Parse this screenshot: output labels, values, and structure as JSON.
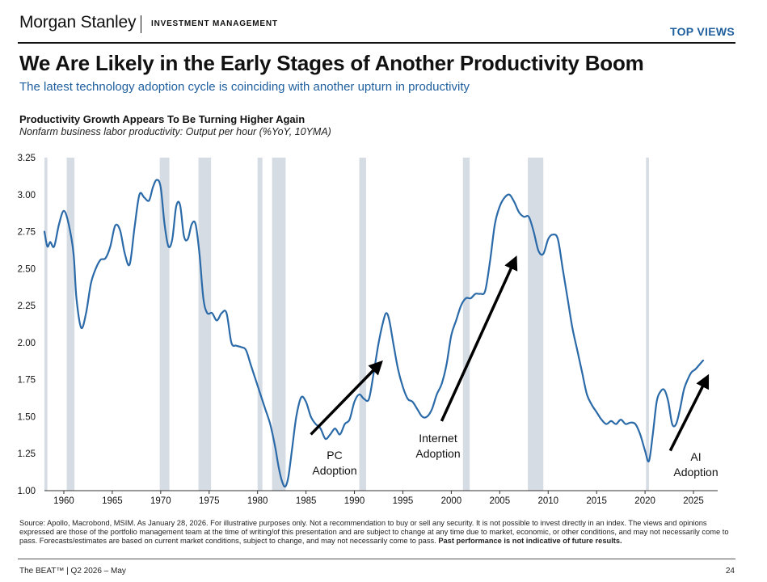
{
  "header": {
    "brand": "Morgan Stanley",
    "division": "INVESTMENT MANAGEMENT",
    "section_tag": "TOP VIEWS"
  },
  "slide": {
    "title": "We Are Likely in the Early Stages of Another Productivity Boom",
    "subtitle": "The latest technology adoption cycle is coinciding with another upturn in productivity"
  },
  "chart_data": {
    "type": "line",
    "title": "Productivity Growth Appears To Be Turning Higher Again",
    "subtitle": "Nonfarm business labor productivity: Output per hour (%YoY, 10YMA)",
    "xlim": [
      1958,
      2027.5
    ],
    "ylim": [
      1.0,
      3.25
    ],
    "yticks": [
      "1.00",
      "1.25",
      "1.50",
      "1.75",
      "2.00",
      "2.25",
      "2.50",
      "2.75",
      "3.00",
      "3.25"
    ],
    "xticks": [
      "1960",
      "1965",
      "1970",
      "1975",
      "1980",
      "1985",
      "1990",
      "1995",
      "2000",
      "2005",
      "2010",
      "2015",
      "2020",
      "2025"
    ],
    "line_color": "#2b6aa8",
    "recession_color": "#d6dce4",
    "recessions": [
      [
        1957.6,
        1958.3
      ],
      [
        1960.3,
        1961.1
      ],
      [
        1969.9,
        1970.9
      ],
      [
        1973.9,
        1975.2
      ],
      [
        1980.0,
        1980.5
      ],
      [
        1981.5,
        1982.9
      ],
      [
        1990.5,
        1991.2
      ],
      [
        2001.2,
        2001.9
      ],
      [
        2007.9,
        2009.5
      ],
      [
        2020.1,
        2020.4
      ]
    ],
    "x": [
      1958.0,
      1958.3,
      1958.6,
      1959.0,
      1959.5,
      1960.0,
      1960.5,
      1961.0,
      1961.3,
      1961.8,
      1962.3,
      1962.8,
      1963.3,
      1963.8,
      1964.3,
      1964.8,
      1965.3,
      1965.8,
      1966.3,
      1966.8,
      1967.3,
      1967.8,
      1968.3,
      1968.8,
      1969.2,
      1969.6,
      1970.0,
      1970.4,
      1970.8,
      1971.2,
      1971.6,
      1972.0,
      1972.4,
      1972.8,
      1973.2,
      1973.6,
      1974.0,
      1974.4,
      1974.8,
      1975.3,
      1975.8,
      1976.3,
      1976.8,
      1977.3,
      1977.8,
      1978.3,
      1978.8,
      1979.3,
      1979.8,
      1980.3,
      1980.8,
      1981.3,
      1981.8,
      1982.2,
      1982.6,
      1982.9,
      1983.2,
      1983.6,
      1984.0,
      1984.5,
      1985.0,
      1985.5,
      1986.0,
      1986.5,
      1987.0,
      1987.5,
      1988.0,
      1988.5,
      1989.0,
      1989.5,
      1990.0,
      1990.5,
      1991.0,
      1991.5,
      1992.0,
      1992.5,
      1993.0,
      1993.3,
      1993.6,
      1994.0,
      1994.5,
      1995.0,
      1995.5,
      1996.0,
      1996.5,
      1997.0,
      1997.5,
      1998.0,
      1998.5,
      1999.0,
      1999.5,
      2000.0,
      2000.5,
      2001.0,
      2001.5,
      2002.0,
      2002.5,
      2003.0,
      2003.5,
      2004.0,
      2004.5,
      2005.0,
      2005.5,
      2006.0,
      2006.5,
      2007.0,
      2007.5,
      2008.0,
      2008.5,
      2009.0,
      2009.5,
      2010.0,
      2010.5,
      2011.0,
      2011.5,
      2012.0,
      2012.5,
      2013.0,
      2013.5,
      2014.0,
      2014.5,
      2015.0,
      2015.5,
      2016.0,
      2016.5,
      2017.0,
      2017.5,
      2018.0,
      2018.5,
      2019.0,
      2019.5,
      2020.0,
      2020.4,
      2020.8,
      2021.2,
      2021.6,
      2022.0,
      2022.4,
      2022.8,
      2023.2,
      2023.6,
      2024.0,
      2024.4,
      2024.8,
      2025.2,
      2025.6,
      2026.0
    ],
    "series": [
      {
        "values": [
          2.75,
          2.65,
          2.68,
          2.65,
          2.8,
          2.89,
          2.8,
          2.6,
          2.3,
          2.1,
          2.2,
          2.4,
          2.5,
          2.56,
          2.57,
          2.65,
          2.79,
          2.76,
          2.6,
          2.53,
          2.78,
          3.0,
          2.98,
          2.96,
          3.05,
          3.1,
          3.05,
          2.8,
          2.65,
          2.7,
          2.92,
          2.93,
          2.72,
          2.7,
          2.8,
          2.8,
          2.6,
          2.3,
          2.2,
          2.2,
          2.15,
          2.2,
          2.2,
          2.0,
          1.98,
          1.97,
          1.95,
          1.85,
          1.75,
          1.65,
          1.55,
          1.45,
          1.3,
          1.15,
          1.05,
          1.03,
          1.1,
          1.3,
          1.5,
          1.63,
          1.6,
          1.5,
          1.45,
          1.42,
          1.35,
          1.38,
          1.42,
          1.38,
          1.45,
          1.48,
          1.6,
          1.65,
          1.62,
          1.62,
          1.8,
          2.0,
          2.15,
          2.2,
          2.15,
          2.0,
          1.82,
          1.7,
          1.62,
          1.6,
          1.55,
          1.5,
          1.5,
          1.55,
          1.65,
          1.72,
          1.85,
          2.05,
          2.15,
          2.25,
          2.3,
          2.3,
          2.33,
          2.33,
          2.35,
          2.55,
          2.8,
          2.92,
          2.98,
          3.0,
          2.95,
          2.88,
          2.85,
          2.85,
          2.75,
          2.62,
          2.6,
          2.7,
          2.73,
          2.7,
          2.5,
          2.3,
          2.1,
          1.95,
          1.8,
          1.65,
          1.58,
          1.53,
          1.48,
          1.45,
          1.47,
          1.45,
          1.48,
          1.45,
          1.46,
          1.45,
          1.38,
          1.27,
          1.2,
          1.38,
          1.6,
          1.67,
          1.68,
          1.6,
          1.45,
          1.45,
          1.55,
          1.68,
          1.75,
          1.8,
          1.82,
          1.85,
          1.88
        ]
      }
    ],
    "annotations": [
      {
        "text": [
          "PC",
          "Adoption"
        ],
        "arrow_from": [
          1985.5,
          1.38
        ],
        "arrow_to": [
          1992.5,
          1.85
        ]
      },
      {
        "text": [
          "Internet",
          "Adoption"
        ],
        "arrow_from": [
          1999.0,
          1.47
        ],
        "arrow_to": [
          2006.5,
          2.55
        ]
      },
      {
        "text": [
          "AI",
          "Adoption"
        ],
        "arrow_from": [
          2022.6,
          1.27
        ],
        "arrow_to": [
          2026.3,
          1.75
        ]
      }
    ]
  },
  "footnote": {
    "text": "Source: Apollo, Macrobond, MSIM. As January 28, 2026. For illustrative purposes only. Not a recommendation to buy or sell any security. It is not possible to invest directly in an index. The views and opinions expressed are those of the portfolio management team at the time of writing/of this presentation and are subject to change at any time due to market, economic, or other conditions, and may not necessarily come to pass.  Forecasts/estimates are based on current market conditions, subject to change, and may not necessarily come to pass.",
    "bold": "Past performance is not indicative of future results."
  },
  "footer": {
    "left": "The BEAT™ | Q2 2026 – May",
    "page": "24"
  }
}
